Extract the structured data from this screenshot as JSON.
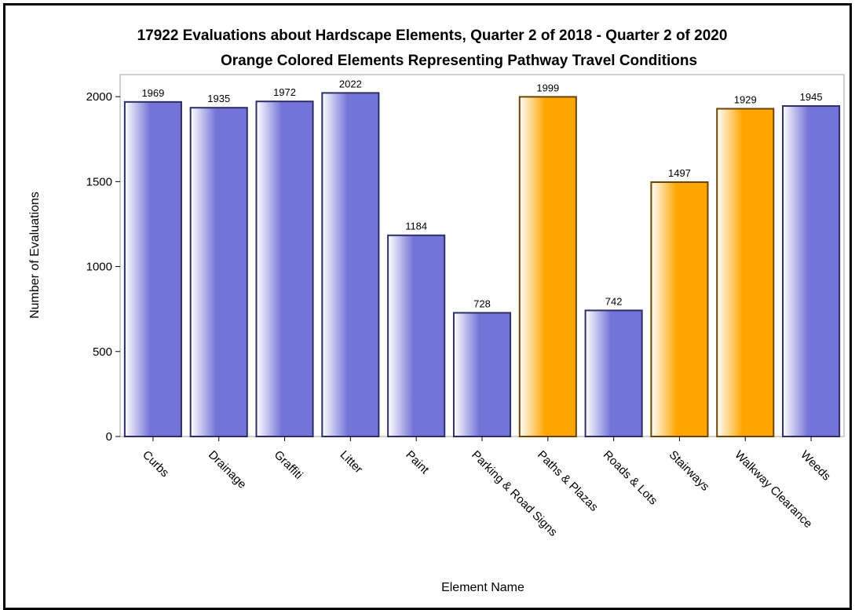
{
  "chart_data": {
    "type": "bar",
    "title": "17922 Evaluations about Hardscape Elements, Quarter 2 of 2018 - Quarter 2 of 2020",
    "subtitle": "Orange Colored Elements Representing Pathway Travel Conditions",
    "xlabel": "Element Name",
    "ylabel": "Number of Evaluations",
    "ylim": [
      0,
      2130
    ],
    "yticks": [
      0,
      500,
      1000,
      1500,
      2000
    ],
    "categories": [
      "Curbs",
      "Drainage",
      "Graffiti",
      "Litter",
      "Paint",
      "Parking & Road Signs",
      "Paths & Plazas",
      "Roads & Lots",
      "Stairways",
      "Walkway Clearance",
      "Weeds"
    ],
    "values": [
      1969,
      1935,
      1972,
      2022,
      1184,
      728,
      1999,
      742,
      1497,
      1929,
      1945
    ],
    "highlight": [
      false,
      false,
      false,
      false,
      false,
      false,
      true,
      false,
      true,
      true,
      false
    ],
    "colors": {
      "default": "#7474d8",
      "highlight": "#ffa500",
      "default_edge": "#2e2e66",
      "highlight_edge": "#6e4500"
    },
    "grid": false,
    "data_labels": true
  }
}
